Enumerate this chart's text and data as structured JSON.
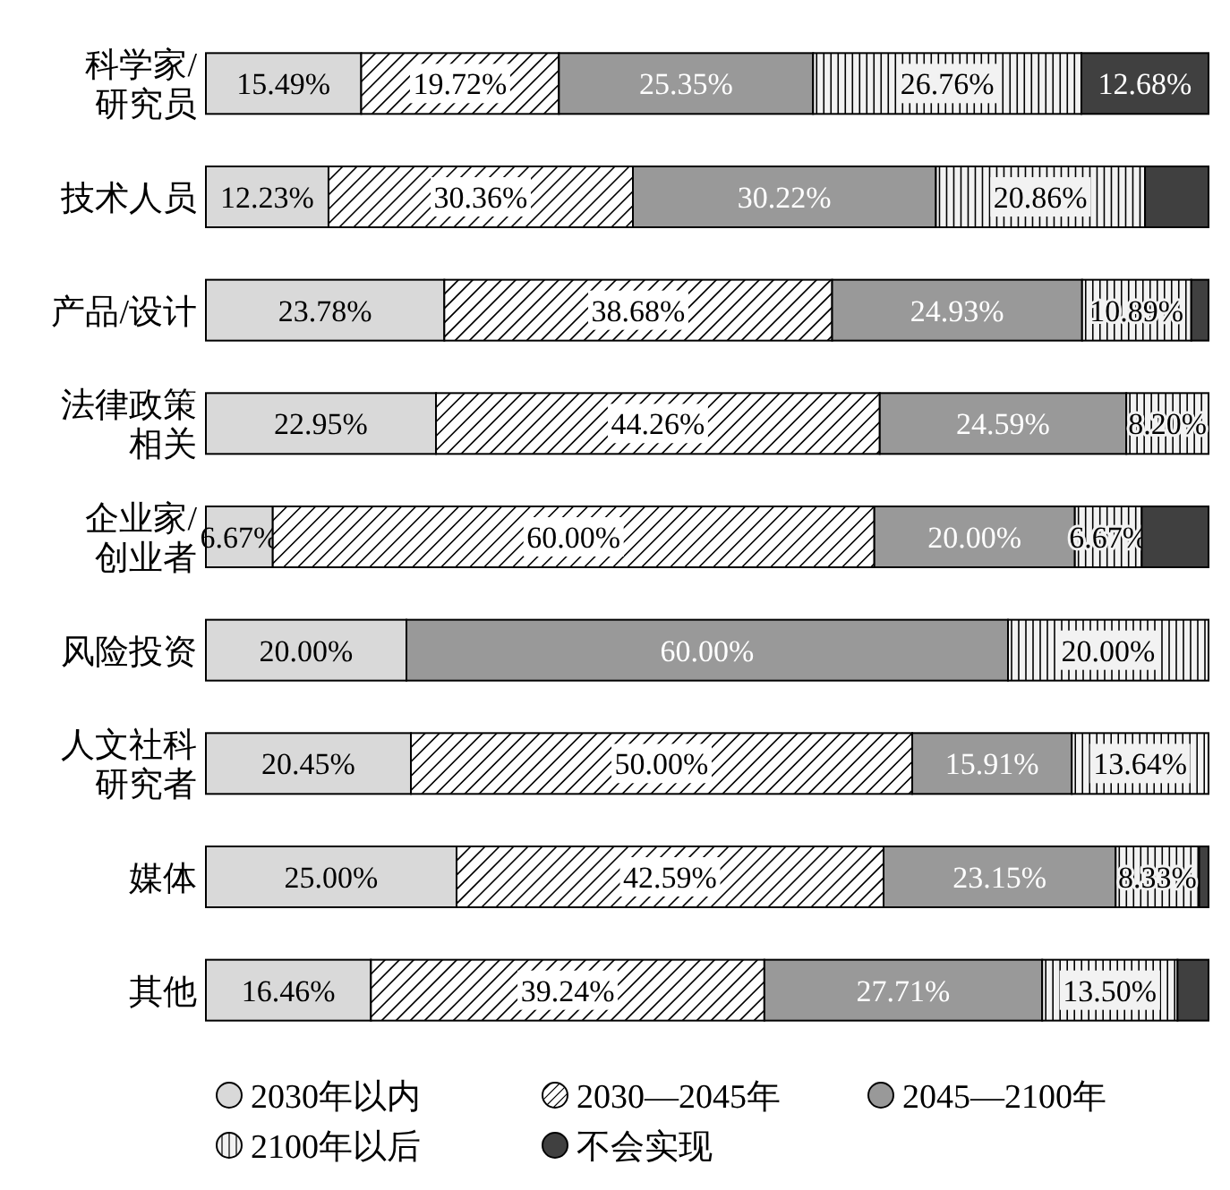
{
  "chart_data": {
    "type": "bar",
    "orientation": "horizontal",
    "stacked": true,
    "legend": "bottom",
    "categories": [
      "科学家/研究员",
      "技术人员",
      "产品/设计",
      "法律政策相关",
      "企业家/创业者",
      "风险投资",
      "人文社科研究者",
      "媒体",
      "其他"
    ],
    "series": [
      {
        "name": "2030年以内",
        "color": "#d9d9d9",
        "values": [
          15.49,
          12.23,
          23.78,
          22.95,
          6.67,
          20.0,
          20.45,
          25.0,
          16.46
        ],
        "value_labels": [
          "15.49%",
          "12.23%",
          "23.78%",
          "22.95%",
          "6.67%",
          "20.00%",
          "20.45%",
          "25.00%",
          "16.46%"
        ]
      },
      {
        "name": "2030—2045年",
        "color": "#ffffff",
        "values": [
          19.72,
          30.36,
          38.68,
          44.26,
          60.0,
          0,
          50.0,
          42.59,
          39.24
        ],
        "value_labels": [
          "19.72%",
          "30.36%",
          "38.68%",
          "44.26%",
          "60.00%",
          null,
          "50.00%",
          "42.59%",
          "39.24%"
        ]
      },
      {
        "name": "2045—2100年",
        "color": "#999999",
        "values": [
          25.35,
          30.22,
          24.93,
          24.59,
          20.0,
          60.0,
          15.91,
          23.15,
          27.71
        ],
        "value_labels": [
          "25.35%",
          "30.22%",
          "24.93%",
          "24.59%",
          "20.00%",
          "60.00%",
          "15.91%",
          "23.15%",
          "27.71%"
        ]
      },
      {
        "name": "2100年以后",
        "color": "#f2f2f2",
        "values": [
          26.76,
          20.86,
          10.89,
          8.2,
          6.67,
          20.0,
          13.64,
          8.33,
          13.5
        ],
        "value_labels": [
          "26.76%",
          "20.86%",
          "10.89%",
          "8.20%",
          "6.67%",
          "20.00%",
          "13.64%",
          "8.33%",
          "13.50%"
        ]
      },
      {
        "name": "不会实现",
        "color": "#404040",
        "values": [
          12.68,
          6.33,
          1.72,
          0,
          6.66,
          0,
          0,
          0.93,
          3.09
        ],
        "value_labels": [
          "12.68%",
          null,
          null,
          null,
          null,
          null,
          null,
          null,
          null
        ]
      }
    ]
  }
}
